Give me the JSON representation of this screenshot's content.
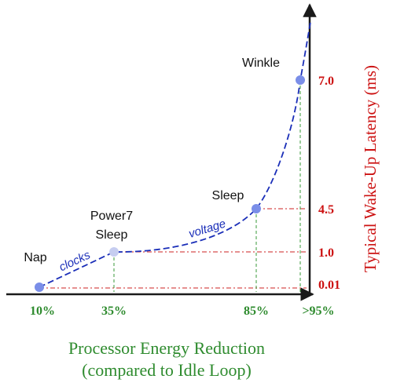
{
  "chart_data": {
    "type": "line",
    "xlabel_line1": "Processor Energy Reduction",
    "xlabel_line2": "(compared to Idle Loop)",
    "ylabel": "Typical Wake-Up Latency (ms)",
    "colors": {
      "axis": "#1a1a1a",
      "x_text": "#2e8b2e",
      "y_text": "#cc1111",
      "curve": "#1a2eb8",
      "point": "#7a8ee8",
      "point_light": "#c6cdf0",
      "x_guides": "#3a9a3a",
      "y_guides": "#cc2222"
    },
    "points": [
      {
        "state": "Nap",
        "x_label": "10%",
        "y_label": "0.01"
      },
      {
        "state_line1": "Power7",
        "state_line2": "Sleep",
        "x_label": "35%",
        "y_label": "1.0"
      },
      {
        "state": "Sleep",
        "x_label": "85%",
        "y_label": "4.5"
      },
      {
        "state": "Winkle",
        "x_label": ">95%",
        "y_label": "7.0"
      }
    ],
    "annotations": {
      "clocks": "clocks",
      "voltage": "voltage"
    }
  }
}
